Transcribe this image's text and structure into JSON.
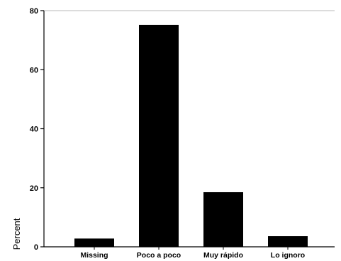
{
  "chart_data": {
    "type": "bar",
    "categories": [
      "Missing",
      "Poco a poco",
      "Muy rápido",
      "Lo ignoro"
    ],
    "values": [
      2.8,
      75.2,
      18.5,
      3.6
    ],
    "xlabel": "",
    "ylabel": "Percent",
    "ylim": [
      0,
      80
    ],
    "yticks": [
      0,
      20,
      40,
      60,
      80
    ],
    "grid": false,
    "bar_color": "#000000"
  }
}
